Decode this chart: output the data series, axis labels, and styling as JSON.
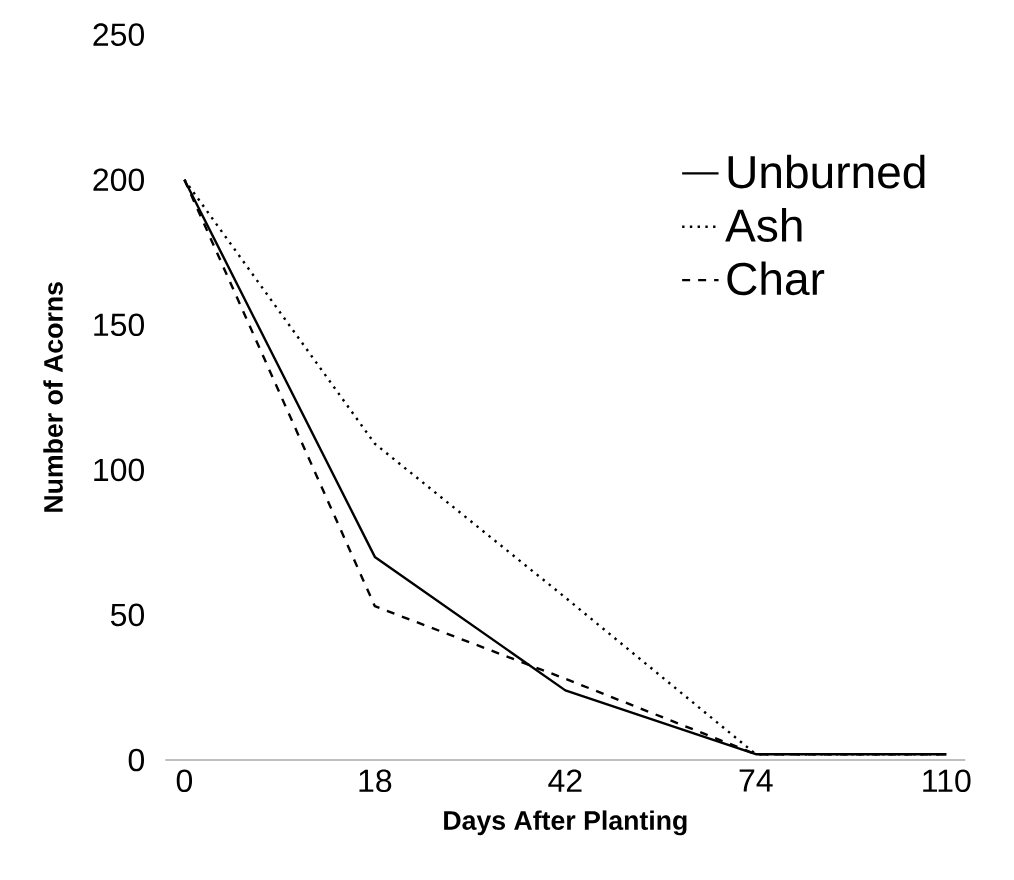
{
  "chart_data": {
    "type": "line",
    "xlabel": "Days After Planting",
    "ylabel": "Number of Acorns",
    "categories": [
      "0",
      "18",
      "42",
      "74",
      "110"
    ],
    "series": [
      {
        "name": "Unburned",
        "color": "#000000",
        "line_style": "solid",
        "values": [
          200,
          70,
          24,
          2,
          2
        ]
      },
      {
        "name": "Ash",
        "color": "#000000",
        "line_style": "dotted",
        "values": [
          200,
          109,
          56,
          2,
          2
        ]
      },
      {
        "name": "Char",
        "color": "#000000",
        "line_style": "dashed",
        "values": [
          200,
          53,
          28,
          2,
          2
        ]
      }
    ],
    "ylim": [
      0,
      250
    ],
    "yticks": [
      0,
      50,
      100,
      150,
      200,
      250
    ],
    "legend": "top right",
    "marker": "none"
  }
}
